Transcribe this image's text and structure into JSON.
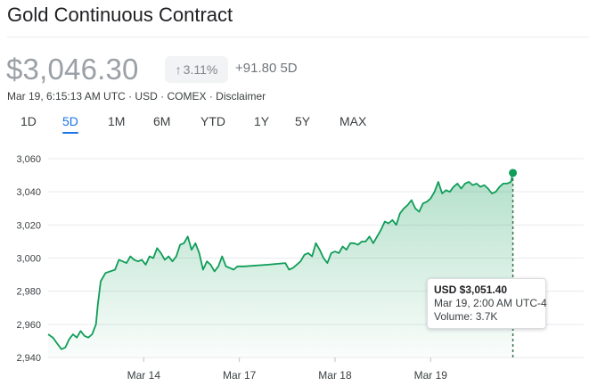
{
  "header": {
    "title": "Gold Continuous Contract"
  },
  "quote": {
    "price": "$3,046.30",
    "change_pct": "3.11%",
    "change_abs": "+91.80",
    "period": "5D",
    "timestamp": "Mar 19, 6:15:13 AM UTC",
    "currency": "USD",
    "exchange": "COMEX",
    "disclaimer": "Disclaimer",
    "separator": "·",
    "up_arrow": "↑"
  },
  "range_tabs": [
    {
      "label": "1D",
      "active": false
    },
    {
      "label": "5D",
      "active": true
    },
    {
      "label": "1M",
      "active": false
    },
    {
      "label": "6M",
      "active": false
    },
    {
      "label": "YTD",
      "active": false
    },
    {
      "label": "1Y",
      "active": false
    },
    {
      "label": "5Y",
      "active": false
    },
    {
      "label": "MAX",
      "active": false
    }
  ],
  "tooltip": {
    "price": "USD $3,051.40",
    "time": "Mar 19, 2:00 AM UTC-4",
    "volume": "Volume: 3.7K"
  },
  "colors": {
    "line": "#0f9d58",
    "accent": "#1a73e8",
    "grid": "#e8eaed"
  },
  "chart_data": {
    "type": "line",
    "ylim": [
      2940,
      3060
    ],
    "yticks": [
      2940,
      2960,
      2980,
      3000,
      3020,
      3040,
      3060
    ],
    "ytick_labels": [
      "2,940",
      "2,960",
      "2,980",
      "3,000",
      "3,020",
      "3,040",
      "3,060"
    ],
    "xlim": [
      0,
      5.6
    ],
    "x_tick_positions": [
      1,
      2,
      3,
      4
    ],
    "x_tick_labels": [
      "Mar 14",
      "Mar 17",
      "Mar 18",
      "Mar 19"
    ],
    "grid": true,
    "highlight_point": {
      "x": 4.09,
      "y": 3051.4
    },
    "series": [
      {
        "values": [
          [
            0.0,
            2954
          ],
          [
            0.05,
            2952
          ],
          [
            0.1,
            2948
          ],
          [
            0.14,
            2945
          ],
          [
            0.18,
            2946
          ],
          [
            0.22,
            2951
          ],
          [
            0.26,
            2954
          ],
          [
            0.3,
            2952
          ],
          [
            0.34,
            2956
          ],
          [
            0.38,
            2953
          ],
          [
            0.42,
            2952
          ],
          [
            0.46,
            2954
          ],
          [
            0.5,
            2960
          ],
          [
            0.52,
            2972
          ],
          [
            0.55,
            2986
          ],
          [
            0.6,
            2991
          ],
          [
            0.65,
            2992
          ],
          [
            0.7,
            2993
          ],
          [
            0.74,
            2999
          ],
          [
            0.78,
            2998
          ],
          [
            0.82,
            2997
          ],
          [
            0.86,
            3001
          ],
          [
            0.9,
            2999
          ],
          [
            0.94,
            2998
          ],
          [
            0.98,
            2999
          ],
          [
            1.02,
            2996
          ],
          [
            1.06,
            3001
          ],
          [
            1.1,
            3000
          ],
          [
            1.14,
            3006
          ],
          [
            1.18,
            3003
          ],
          [
            1.22,
            2999
          ],
          [
            1.26,
            3001
          ],
          [
            1.3,
            2998
          ],
          [
            1.34,
            3001
          ],
          [
            1.38,
            3008
          ],
          [
            1.42,
            3009
          ],
          [
            1.46,
            3013
          ],
          [
            1.5,
            3005
          ],
          [
            1.54,
            3009
          ],
          [
            1.58,
            3003
          ],
          [
            1.62,
            2993
          ],
          [
            1.66,
            2998
          ],
          [
            1.7,
            2996
          ],
          [
            1.74,
            2992
          ],
          [
            1.78,
            2995
          ],
          [
            1.82,
            3001
          ],
          [
            1.86,
            2995
          ],
          [
            1.9,
            2994
          ],
          [
            1.94,
            2993
          ],
          [
            1.98,
            2995
          ],
          [
            2.05,
            2995
          ],
          [
            2.3,
            2996
          ],
          [
            2.48,
            2997
          ],
          [
            2.52,
            2993
          ],
          [
            2.56,
            2994
          ],
          [
            2.6,
            2996
          ],
          [
            2.64,
            2998
          ],
          [
            2.68,
            3002
          ],
          [
            2.72,
            3003
          ],
          [
            2.76,
            3001
          ],
          [
            2.8,
            3009
          ],
          [
            2.84,
            3005
          ],
          [
            2.88,
            3000
          ],
          [
            2.92,
            2997
          ],
          [
            2.96,
            3003
          ],
          [
            3.0,
            3004
          ],
          [
            3.04,
            3003
          ],
          [
            3.08,
            3007
          ],
          [
            3.12,
            3005
          ],
          [
            3.16,
            3009
          ],
          [
            3.2,
            3009
          ],
          [
            3.24,
            3008
          ],
          [
            3.28,
            3010
          ],
          [
            3.32,
            3010
          ],
          [
            3.36,
            3013
          ],
          [
            3.4,
            3009
          ],
          [
            3.44,
            3013
          ],
          [
            3.48,
            3017
          ],
          [
            3.52,
            3022
          ],
          [
            3.56,
            3021
          ],
          [
            3.6,
            3023
          ],
          [
            3.64,
            3020
          ],
          [
            3.68,
            3027
          ],
          [
            3.72,
            3030
          ],
          [
            3.76,
            3032
          ],
          [
            3.8,
            3035
          ],
          [
            3.84,
            3030
          ],
          [
            3.88,
            3028
          ],
          [
            3.92,
            3033
          ],
          [
            3.96,
            3034
          ],
          [
            4.0,
            3036
          ],
          [
            4.04,
            3040
          ],
          [
            4.08,
            3046
          ],
          [
            4.12,
            3039
          ],
          [
            4.16,
            3041
          ],
          [
            4.2,
            3040
          ],
          [
            4.24,
            3043
          ],
          [
            4.28,
            3045
          ],
          [
            4.32,
            3042
          ],
          [
            4.36,
            3045
          ],
          [
            4.4,
            3046
          ],
          [
            4.44,
            3044
          ],
          [
            4.48,
            3045
          ],
          [
            4.52,
            3043
          ],
          [
            4.56,
            3044
          ],
          [
            4.6,
            3042
          ],
          [
            4.64,
            3039
          ],
          [
            4.68,
            3040
          ],
          [
            4.72,
            3043
          ],
          [
            4.76,
            3045
          ],
          [
            4.8,
            3045
          ],
          [
            4.84,
            3046
          ],
          [
            4.86,
            3051.4
          ]
        ]
      }
    ]
  }
}
